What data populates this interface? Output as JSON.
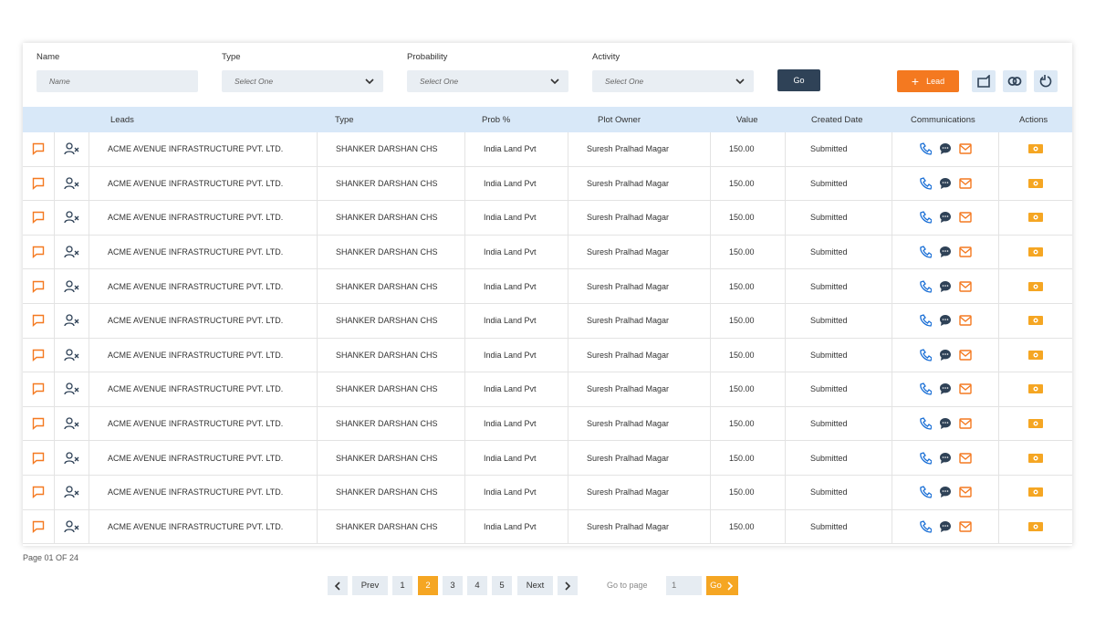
{
  "filters": [
    {
      "label": "Name",
      "placeholder": "Name"
    },
    {
      "label": "Type",
      "placeholder": "Select One"
    },
    {
      "label": "Probability",
      "placeholder": "Select One"
    },
    {
      "label": "Activity",
      "placeholder": "Select One"
    }
  ],
  "go_button": "Go",
  "lead_button": "Lead",
  "table": {
    "columns": [
      "Leads",
      "Type",
      "Prob %",
      "Plot Owner",
      "Value",
      "Created Date",
      "Communications",
      "Actions"
    ],
    "rows": [
      [
        "ACME AVENUE INFRASTRUCTURE PVT. LTD.",
        "SHANKER DARSHAN CHS",
        "India Land Pvt",
        "Suresh Pralhad Magar",
        "150.00",
        "Submitted"
      ],
      [
        "ACME AVENUE INFRASTRUCTURE PVT. LTD.",
        "SHANKER DARSHAN CHS",
        "India Land Pvt",
        "Suresh Pralhad Magar",
        "150.00",
        "Submitted"
      ],
      [
        "ACME AVENUE INFRASTRUCTURE PVT. LTD.",
        "SHANKER DARSHAN CHS",
        "India Land Pvt",
        "Suresh Pralhad Magar",
        "150.00",
        "Submitted"
      ],
      [
        "ACME AVENUE INFRASTRUCTURE PVT. LTD.",
        "SHANKER DARSHAN CHS",
        "India Land Pvt",
        "Suresh Pralhad Magar",
        "150.00",
        "Submitted"
      ],
      [
        "ACME AVENUE INFRASTRUCTURE PVT. LTD.",
        "SHANKER DARSHAN CHS",
        "India Land Pvt",
        "Suresh Pralhad Magar",
        "150.00",
        "Submitted"
      ],
      [
        "ACME AVENUE INFRASTRUCTURE PVT. LTD.",
        "SHANKER DARSHAN CHS",
        "India Land Pvt",
        "Suresh Pralhad Magar",
        "150.00",
        "Submitted"
      ],
      [
        "ACME AVENUE INFRASTRUCTURE PVT. LTD.",
        "SHANKER DARSHAN CHS",
        "India Land Pvt",
        "Suresh Pralhad Magar",
        "150.00",
        "Submitted"
      ],
      [
        "ACME AVENUE INFRASTRUCTURE PVT. LTD.",
        "SHANKER DARSHAN CHS",
        "India Land Pvt",
        "Suresh Pralhad Magar",
        "150.00",
        "Submitted"
      ],
      [
        "ACME AVENUE INFRASTRUCTURE PVT. LTD.",
        "SHANKER DARSHAN CHS",
        "India Land Pvt",
        "Suresh Pralhad Magar",
        "150.00",
        "Submitted"
      ],
      [
        "ACME AVENUE INFRASTRUCTURE PVT. LTD.",
        "SHANKER DARSHAN CHS",
        "India Land Pvt",
        "Suresh Pralhad Magar",
        "150.00",
        "Submitted"
      ],
      [
        "ACME AVENUE INFRASTRUCTURE PVT. LTD.",
        "SHANKER DARSHAN CHS",
        "India Land Pvt",
        "Suresh Pralhad Magar",
        "150.00",
        "Submitted"
      ],
      [
        "ACME AVENUE INFRASTRUCTURE PVT. LTD.",
        "SHANKER DARSHAN CHS",
        "India Land Pvt",
        "Suresh Pralhad Magar",
        "150.00",
        "Submitted"
      ]
    ]
  },
  "page_info": "Page 01 OF 24",
  "pagination": {
    "prev": "Prev",
    "pages": [
      "1",
      "2",
      "3",
      "4",
      "5"
    ],
    "next": "Next",
    "go_to_page": "Go to page",
    "page_input": "1",
    "go": "Go"
  }
}
